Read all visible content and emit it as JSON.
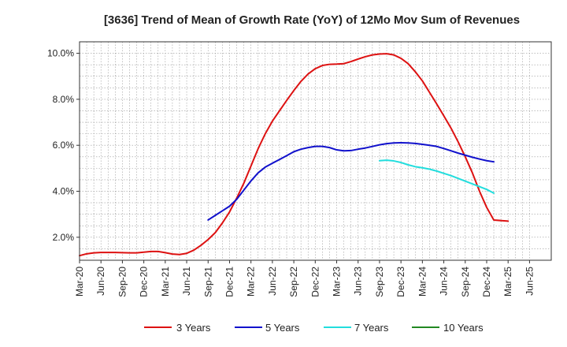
{
  "chart_data": {
    "type": "line",
    "title": "[3636]  Trend of Mean of Growth Rate (YoY) of 12Mo Mov Sum of Revenues",
    "xlabel": "",
    "ylabel": "",
    "x_ticks": [
      "Mar-20",
      "Jun-20",
      "Sep-20",
      "Dec-20",
      "Mar-21",
      "Jun-21",
      "Sep-21",
      "Dec-21",
      "Mar-22",
      "Jun-22",
      "Sep-22",
      "Dec-22",
      "Mar-23",
      "Jun-23",
      "Sep-23",
      "Dec-23",
      "Mar-24",
      "Jun-24",
      "Sep-24",
      "Dec-24",
      "Mar-25",
      "Jun-25"
    ],
    "y_ticks": [
      "2.0%",
      "4.0%",
      "6.0%",
      "8.0%",
      "10.0%"
    ],
    "y_tick_values": [
      2,
      4,
      6,
      8,
      10
    ],
    "ylim": [
      1.0,
      10.5
    ],
    "x_unit": "months since Mar-20",
    "xlim": [
      0,
      63
    ],
    "grid": true,
    "legend_position": "bottom",
    "series": [
      {
        "name": "3 Years",
        "color": "#dd1111",
        "points": [
          [
            0,
            1.2
          ],
          [
            1,
            1.28
          ],
          [
            2,
            1.32
          ],
          [
            3,
            1.34
          ],
          [
            4,
            1.34
          ],
          [
            5,
            1.34
          ],
          [
            6,
            1.33
          ],
          [
            7,
            1.32
          ],
          [
            8,
            1.32
          ],
          [
            9,
            1.35
          ],
          [
            10,
            1.38
          ],
          [
            11,
            1.38
          ],
          [
            12,
            1.33
          ],
          [
            13,
            1.27
          ],
          [
            14,
            1.25
          ],
          [
            15,
            1.3
          ],
          [
            16,
            1.44
          ],
          [
            17,
            1.65
          ],
          [
            18,
            1.9
          ],
          [
            19,
            2.2
          ],
          [
            20,
            2.62
          ],
          [
            21,
            3.1
          ],
          [
            22,
            3.7
          ],
          [
            23,
            4.35
          ],
          [
            24,
            5.1
          ],
          [
            25,
            5.85
          ],
          [
            26,
            6.5
          ],
          [
            27,
            7.05
          ],
          [
            28,
            7.5
          ],
          [
            29,
            7.95
          ],
          [
            30,
            8.38
          ],
          [
            31,
            8.78
          ],
          [
            32,
            9.1
          ],
          [
            33,
            9.33
          ],
          [
            34,
            9.47
          ],
          [
            35,
            9.52
          ],
          [
            36,
            9.53
          ],
          [
            37,
            9.55
          ],
          [
            38,
            9.64
          ],
          [
            39,
            9.75
          ],
          [
            40,
            9.85
          ],
          [
            41,
            9.93
          ],
          [
            42,
            9.97
          ],
          [
            43,
            9.98
          ],
          [
            44,
            9.93
          ],
          [
            45,
            9.78
          ],
          [
            46,
            9.55
          ],
          [
            47,
            9.2
          ],
          [
            48,
            8.8
          ],
          [
            49,
            8.3
          ],
          [
            50,
            7.8
          ],
          [
            51,
            7.28
          ],
          [
            52,
            6.75
          ],
          [
            53,
            6.15
          ],
          [
            54,
            5.5
          ],
          [
            55,
            4.8
          ],
          [
            56,
            4.0
          ],
          [
            57,
            3.3
          ],
          [
            58,
            2.75
          ],
          [
            60,
            2.7
          ]
        ],
        "visible_end": 60
      },
      {
        "name": "5 Years",
        "color": "#1111cc",
        "points": [
          [
            18,
            2.75
          ],
          [
            19,
            2.95
          ],
          [
            20,
            3.15
          ],
          [
            21,
            3.35
          ],
          [
            22,
            3.65
          ],
          [
            23,
            4.05
          ],
          [
            24,
            4.45
          ],
          [
            25,
            4.8
          ],
          [
            26,
            5.05
          ],
          [
            27,
            5.22
          ],
          [
            28,
            5.38
          ],
          [
            29,
            5.55
          ],
          [
            30,
            5.72
          ],
          [
            31,
            5.83
          ],
          [
            32,
            5.9
          ],
          [
            33,
            5.95
          ],
          [
            34,
            5.95
          ],
          [
            35,
            5.9
          ],
          [
            36,
            5.8
          ],
          [
            37,
            5.76
          ],
          [
            38,
            5.77
          ],
          [
            39,
            5.83
          ],
          [
            40,
            5.88
          ],
          [
            41,
            5.95
          ],
          [
            42,
            6.02
          ],
          [
            43,
            6.07
          ],
          [
            44,
            6.1
          ],
          [
            45,
            6.11
          ],
          [
            46,
            6.1
          ],
          [
            47,
            6.08
          ],
          [
            48,
            6.04
          ],
          [
            49,
            6.0
          ],
          [
            50,
            5.95
          ],
          [
            51,
            5.86
          ],
          [
            52,
            5.76
          ],
          [
            53,
            5.66
          ],
          [
            54,
            5.57
          ],
          [
            55,
            5.48
          ],
          [
            56,
            5.4
          ],
          [
            57,
            5.33
          ],
          [
            58,
            5.28
          ]
        ],
        "visible_end": 60
      },
      {
        "name": "7 Years",
        "color": "#22dddd",
        "points": [
          [
            42,
            5.33
          ],
          [
            43,
            5.35
          ],
          [
            44,
            5.32
          ],
          [
            45,
            5.25
          ],
          [
            46,
            5.15
          ],
          [
            47,
            5.07
          ],
          [
            48,
            5.02
          ],
          [
            49,
            4.96
          ],
          [
            50,
            4.88
          ],
          [
            51,
            4.78
          ],
          [
            52,
            4.68
          ],
          [
            53,
            4.56
          ],
          [
            54,
            4.44
          ],
          [
            55,
            4.32
          ],
          [
            56,
            4.2
          ],
          [
            57,
            4.08
          ],
          [
            58,
            3.92
          ]
        ],
        "visible_end": 60
      },
      {
        "name": "10 Years",
        "color": "#228822",
        "points": []
      }
    ]
  }
}
